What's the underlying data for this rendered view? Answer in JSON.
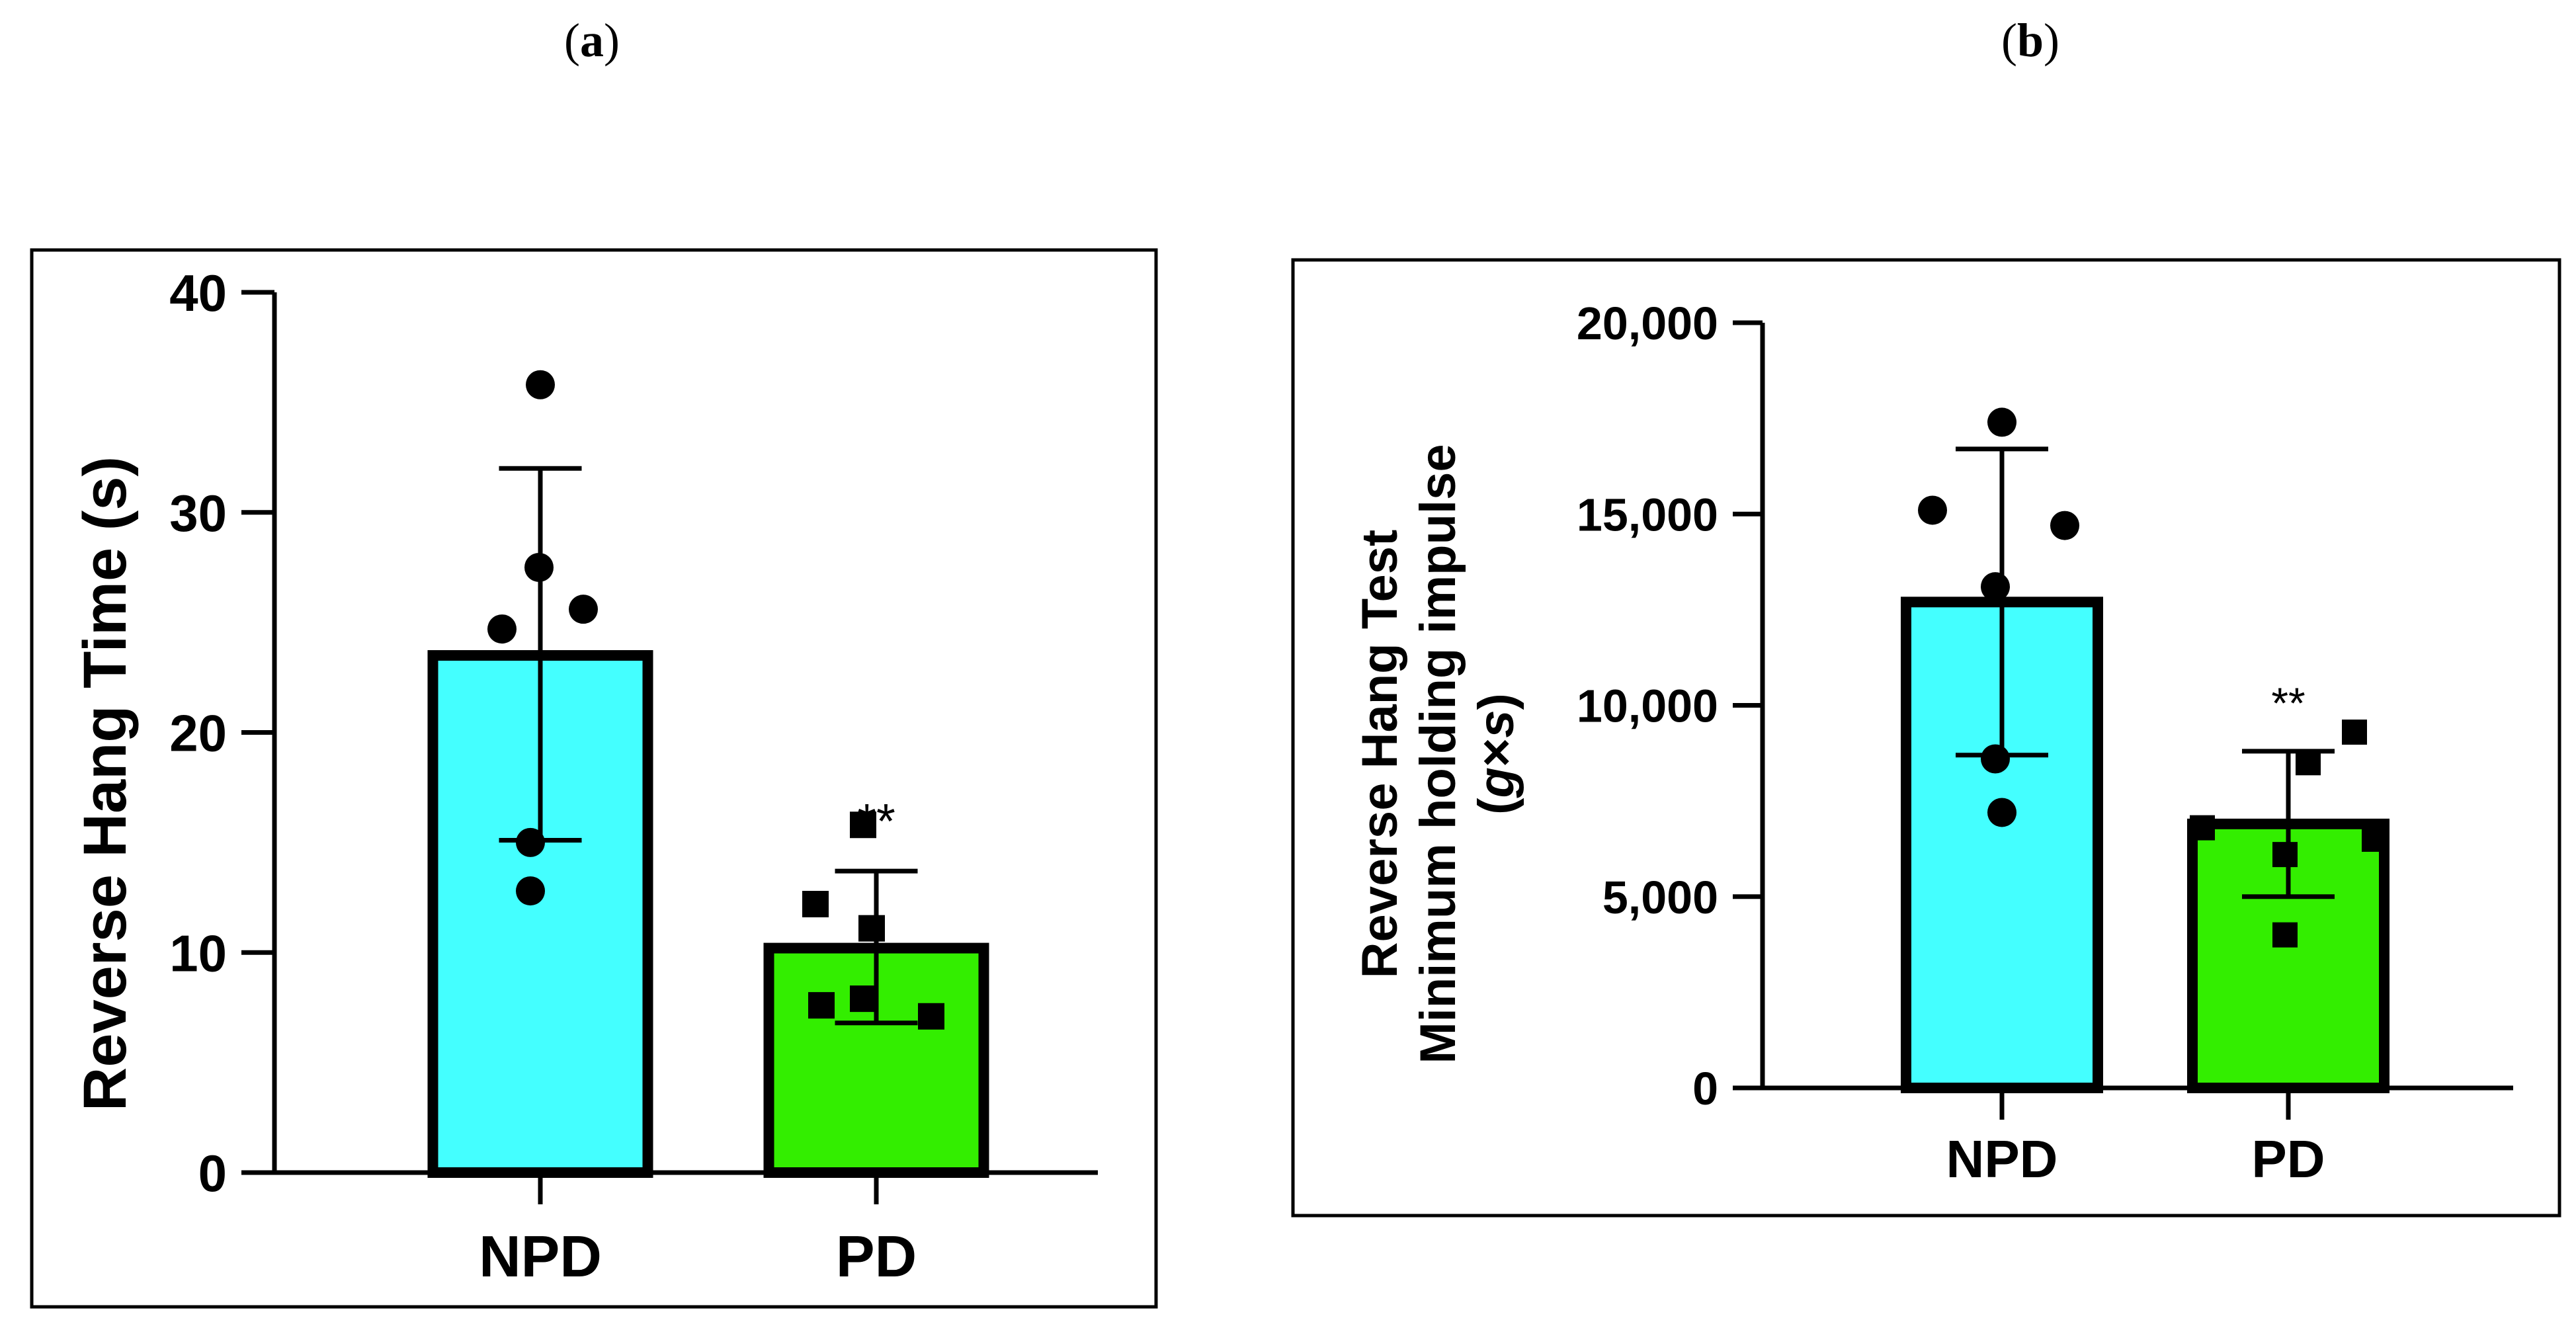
{
  "panels": [
    {
      "label_open": "(",
      "label_letter": "a",
      "label_close": ")"
    },
    {
      "label_open": "(",
      "label_letter": "b",
      "label_close": ")"
    }
  ],
  "chart_data": [
    {
      "type": "bar",
      "categories": [
        "NPD",
        "PD"
      ],
      "values": [
        23.5,
        10.2
      ],
      "error_bars": [
        {
          "upper": 32.0,
          "lower": 15.1
        },
        {
          "upper": 13.7,
          "lower": 6.8
        }
      ],
      "points": [
        [
          35.8,
          27.5,
          24.7,
          25.6,
          15.0,
          12.8
        ],
        [
          15.8,
          12.2,
          11.1,
          7.9,
          7.1,
          7.6
        ]
      ],
      "marker_shapes": [
        "circle",
        "square"
      ],
      "significance": [
        "",
        "**"
      ],
      "title": "",
      "xlabel": "",
      "ylabel": "Reverse Hang Time (s)",
      "ylim": [
        0,
        40
      ],
      "yticks": [
        0,
        10,
        20,
        30,
        40
      ],
      "ytick_labels": [
        "0",
        "10",
        "20",
        "30",
        "40"
      ],
      "colors": [
        "#44FFFF",
        "#33EE00"
      ]
    },
    {
      "type": "bar",
      "categories": [
        "NPD",
        "PD"
      ],
      "values": [
        12700,
        6900
      ],
      "error_bars": [
        {
          "upper": 16700,
          "lower": 8700
        },
        {
          "upper": 8800,
          "lower": 5000
        }
      ],
      "points": [
        [
          17400,
          15100,
          14700,
          13100,
          8600,
          7200
        ],
        [
          9300,
          8500,
          6800,
          6500,
          6100,
          4000
        ]
      ],
      "marker_shapes": [
        "circle",
        "square"
      ],
      "significance": [
        "",
        "**"
      ],
      "title": "",
      "xlabel": "",
      "ylabel": "Reverse Hang Test",
      "ylabel_line2": "Minimum holding impulse",
      "ylabel_line3_open": "(",
      "ylabel_line3_var1": "g",
      "ylabel_line3_op": "×",
      "ylabel_line3_var2": "s",
      "ylabel_line3_close": ")",
      "ylim": [
        0,
        20000
      ],
      "yticks": [
        0,
        5000,
        10000,
        15000,
        20000
      ],
      "ytick_labels": [
        "0",
        "5,000",
        "10,000",
        "15,000",
        "20,000"
      ],
      "colors": [
        "#44FFFF",
        "#33EE00"
      ]
    }
  ]
}
